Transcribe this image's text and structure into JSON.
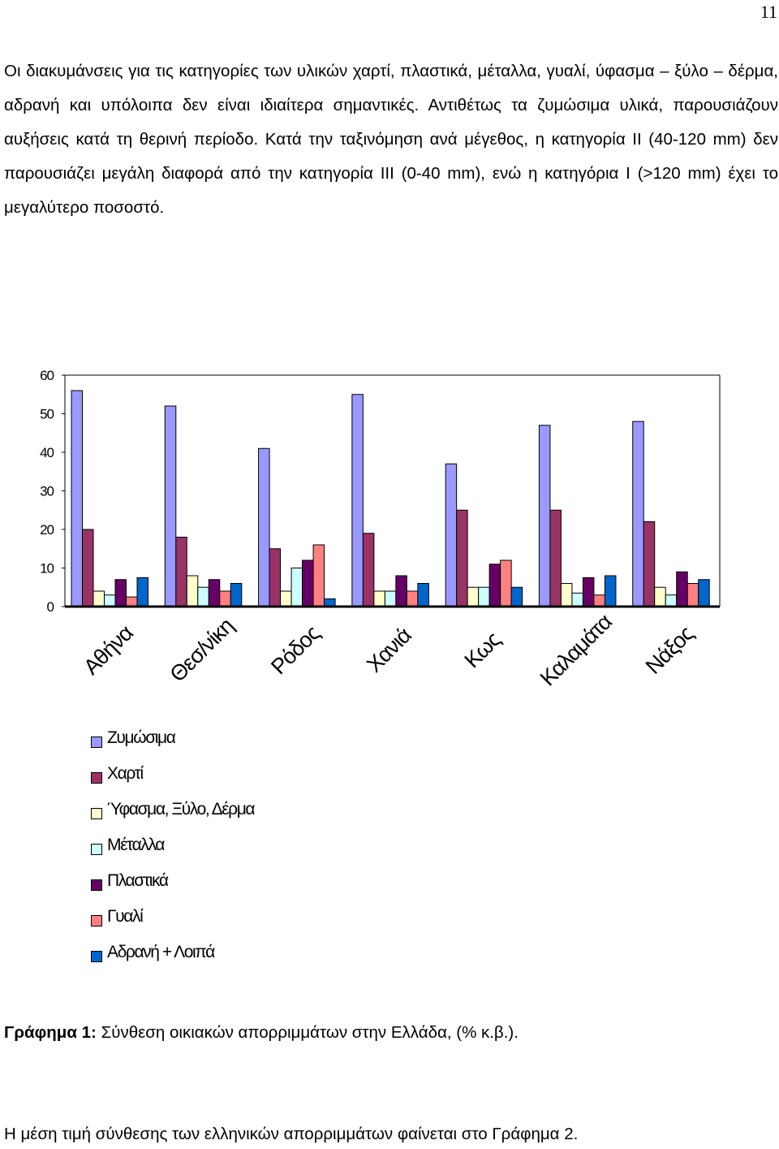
{
  "page_number": "11",
  "paragraph": "Οι διακυμάνσεις για τις κατηγορίες των υλικών χαρτί, πλαστικά, μέταλλα, γυαλί, ύφασμα – ξύλο – δέρμα, αδρανή και υπόλοιπα δεν είναι ιδιαίτερα σημαντικές. Αντιθέτως τα ζυμώσιμα υλικά, παρουσιάζουν αυξήσεις κατά τη θερινή περίοδο. Κατά την ταξινόμηση ανά μέγεθος, η κατηγορία ΙΙ (40-120 mm) δεν παρουσιάζει μεγάλη διαφορά από την κατηγορία ΙΙΙ (0-40 mm), ενώ η κατηγόρια Ι (>120 mm) έχει το μεγαλύτερο ποσοστό.",
  "chart_data": {
    "type": "bar",
    "categories": [
      "Αθήνα",
      "Θεσ/νίκη",
      "Ρόδος",
      "Χανιά",
      "Κως",
      "Καλαμάτα",
      "Νάξος"
    ],
    "ylim": [
      0,
      60
    ],
    "yticks": [
      "0",
      "10",
      "20",
      "30",
      "40",
      "50",
      "60"
    ],
    "grid": false,
    "legend_position": "bottom",
    "series": [
      {
        "name": "Ζυμώσιμα",
        "color": "#9999ff",
        "values": [
          56,
          52,
          41,
          55,
          37,
          47,
          48
        ]
      },
      {
        "name": "Χαρτί",
        "color": "#993366",
        "values": [
          20,
          18,
          15,
          19,
          25,
          25,
          22
        ]
      },
      {
        "name": "Ύφασμα, Ξύλο, Δέρμα",
        "color": "#ffffcc",
        "values": [
          4,
          8,
          4,
          4,
          5,
          6,
          5
        ]
      },
      {
        "name": "Μέταλλα",
        "color": "#ccffff",
        "values": [
          3,
          5,
          10,
          4,
          5,
          3.5,
          3
        ]
      },
      {
        "name": "Πλαστικά",
        "color": "#660066",
        "values": [
          7,
          7,
          12,
          8,
          11,
          7.5,
          9
        ]
      },
      {
        "name": "Γυαλί",
        "color": "#ff8080",
        "values": [
          2.5,
          4,
          16,
          4,
          12,
          3,
          6
        ]
      },
      {
        "name": "Αδρανή + Λοιπά",
        "color": "#0066cc",
        "values": [
          7.5,
          6,
          2,
          6,
          5,
          8,
          7
        ]
      }
    ]
  },
  "caption": {
    "label": "Γράφημα 1:",
    "text": " Σύνθεση οικιακών απορριμμάτων στην Ελλάδα, (% κ.β.)."
  },
  "footer_text": "Η μέση τιμή σύνθεσης των ελληνικών απορριμμάτων φαίνεται στο Γράφημα 2."
}
